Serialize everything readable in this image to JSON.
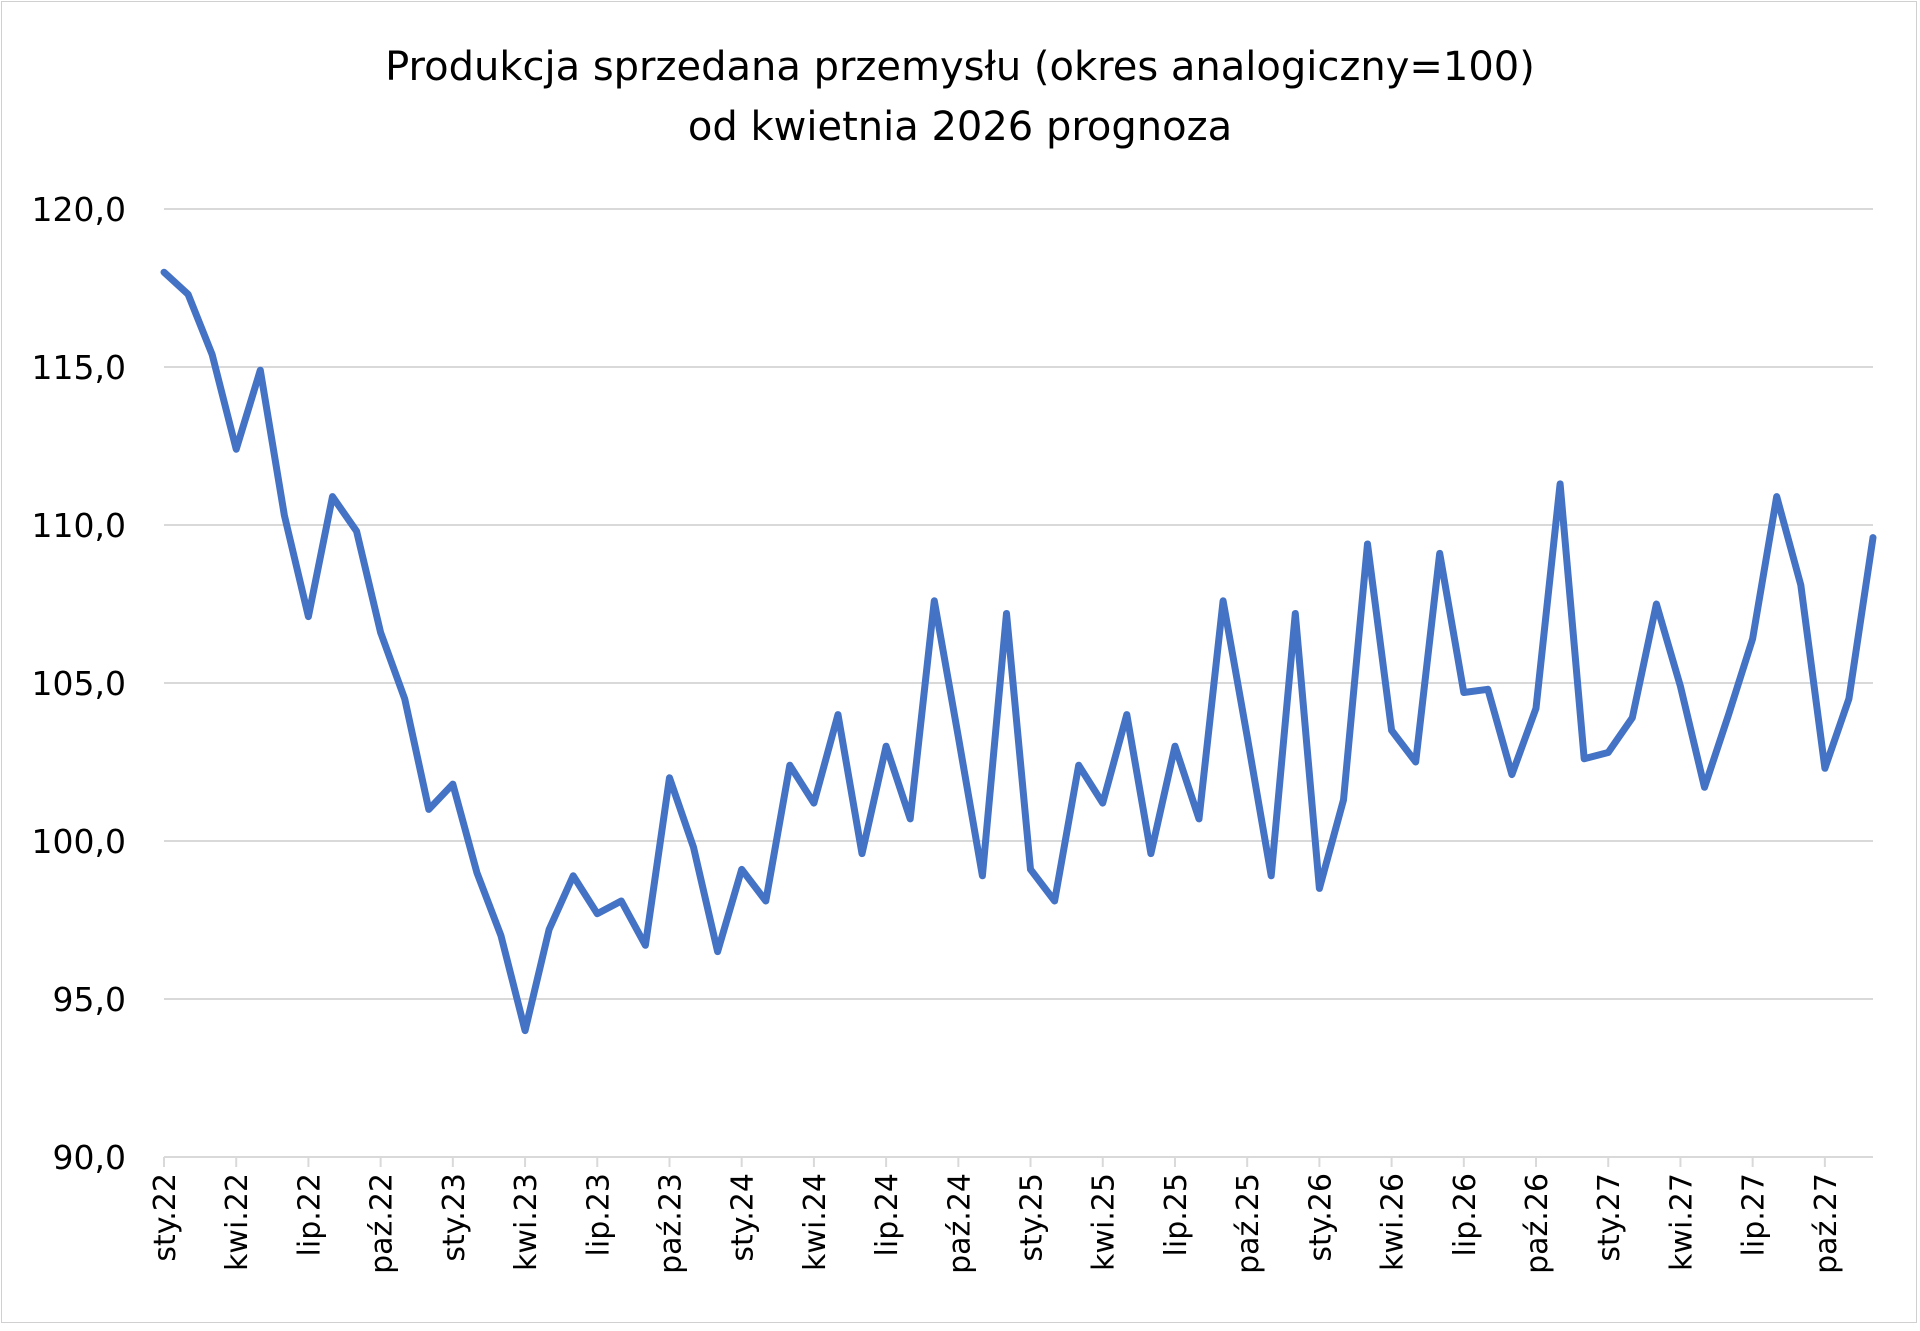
{
  "chart_data": {
    "type": "line",
    "title": [
      "Produkcja sprzedana przemysłu (okres analogiczny=100)",
      "od kwietnia 2026 prognoza"
    ],
    "xlabel": "",
    "ylabel": "",
    "ylim": [
      90,
      120
    ],
    "yticks": [
      "90,0",
      "95,0",
      "100,0",
      "105,0",
      "110,0",
      "115,0",
      "120,0"
    ],
    "ytick_values": [
      90,
      95,
      100,
      105,
      110,
      115,
      120
    ],
    "xtick_labels": [
      "sty.22",
      "kwi.22",
      "lip.22",
      "paź.22",
      "sty.23",
      "kwi.23",
      "lip.23",
      "paź.23",
      "sty.24",
      "kwi.24",
      "lip.24",
      "paź.24",
      "sty.25",
      "kwi.25",
      "lip.25",
      "paź.25",
      "sty.26",
      "kwi.26",
      "lip.26",
      "paź.26",
      "sty.27",
      "kwi.27",
      "lip.27",
      "paź.27"
    ],
    "xtick_every_months": 3,
    "grid": "horizontal",
    "legend": "none",
    "series": [
      {
        "name": "Produkcja sprzedana przemysłu",
        "color": "#4472C4",
        "values": [
          118.0,
          117.3,
          115.4,
          112.4,
          114.9,
          110.3,
          107.1,
          110.9,
          109.8,
          106.6,
          104.5,
          101.0,
          101.8,
          99.0,
          97.0,
          94.0,
          97.2,
          98.9,
          97.7,
          98.1,
          96.7,
          102.0,
          99.8,
          96.5,
          99.1,
          98.1,
          102.4,
          101.2,
          104.0,
          99.6,
          103.0,
          100.7,
          107.6,
          103.3,
          98.9,
          107.2,
          99.1,
          98.1,
          102.4,
          101.2,
          104.0,
          99.6,
          103.0,
          100.7,
          107.6,
          103.3,
          98.9,
          107.2,
          98.5,
          101.3,
          109.4,
          103.5,
          102.5,
          109.1,
          104.7,
          104.8,
          102.1,
          104.2,
          111.3,
          102.6,
          102.8,
          103.9,
          107.5,
          104.9,
          101.7,
          104.0,
          106.4,
          110.9,
          108.1,
          102.3,
          104.5,
          109.6
        ]
      }
    ]
  }
}
